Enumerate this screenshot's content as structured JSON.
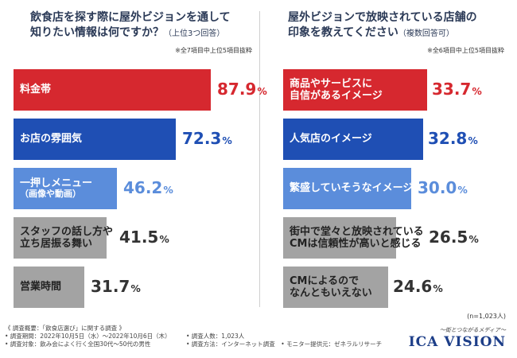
{
  "left_chart": {
    "title_line1": "飲食店を探す際に屋外ビジョンを通して",
    "title_line2": "知りたい情報は何ですか？",
    "title_sub": "（上位3つ回答）",
    "note": "※全7項目中上位5項目抜粋"
  },
  "right_chart": {
    "title_line1": "屋外ビジョンで放映されている店舗の",
    "title_line2": "印象を教えてください",
    "title_sub": "（複数回答可）",
    "note": "※全6項目中上位5項目抜粋"
  },
  "sample_size": "(n=1,023人)",
  "chart_data": [
    {
      "type": "bar",
      "orientation": "horizontal",
      "title": "飲食店を探す際に屋外ビジョンを通して知りたい情報は何ですか？（上位3つ回答）",
      "categories": [
        [
          "料金帯"
        ],
        [
          "お店の雰囲気"
        ],
        [
          "一押しメニュー",
          "（画像や動画）"
        ],
        [
          "スタッフの話し方や",
          "立ち居振る舞い"
        ],
        [
          "営業時間"
        ]
      ],
      "values": [
        87.9,
        72.3,
        46.2,
        41.5,
        31.7
      ],
      "colors": [
        "#d6282f",
        "#1f4fb4",
        "#5b8ddb",
        "#a3a3a3",
        "#a3a3a3"
      ],
      "value_colors": [
        "#d6282f",
        "#1f4fb4",
        "#5b8ddb",
        "#333333",
        "#333333"
      ],
      "unit": "%",
      "xlim": [
        0,
        100
      ]
    },
    {
      "type": "bar",
      "orientation": "horizontal",
      "title": "屋外ビジョンで放映されている店舗の印象を教えてください（複数回答可）",
      "categories": [
        [
          "商品やサービスに",
          "自信があるイメージ"
        ],
        [
          "人気店のイメージ"
        ],
        [
          "繁盛していそうなイメージ"
        ],
        [
          "街中で堂々と放映されている",
          "CMは信頼性が高いと感じる"
        ],
        [
          "CMによるので",
          "なんともいえない"
        ]
      ],
      "values": [
        33.7,
        32.8,
        30.0,
        26.5,
        24.6
      ],
      "colors": [
        "#d6282f",
        "#1f4fb4",
        "#5b8ddb",
        "#a3a3a3",
        "#a3a3a3"
      ],
      "value_colors": [
        "#d6282f",
        "#1f4fb4",
        "#5b8ddb",
        "#333333",
        "#333333"
      ],
      "unit": "%",
      "xlim": [
        0,
        38
      ]
    }
  ],
  "footer": {
    "line1": "《 調査概要：「飲食店選び」に関する調査 》",
    "left_items": [
      "• 調査期間：2022年10月5日（水）〜2022年10月6日（木）",
      "• 調査対象：飲み会によく行く全国30代〜50代の男性"
    ],
    "right_items": [
      "• 調査人数：1,023人",
      "• 調査方法：インターネット調査　• モニター提供元：ゼネラルリサーチ"
    ]
  },
  "brand": {
    "tagline": "〜街とつながるメディア〜",
    "name": "ICA VISION"
  }
}
